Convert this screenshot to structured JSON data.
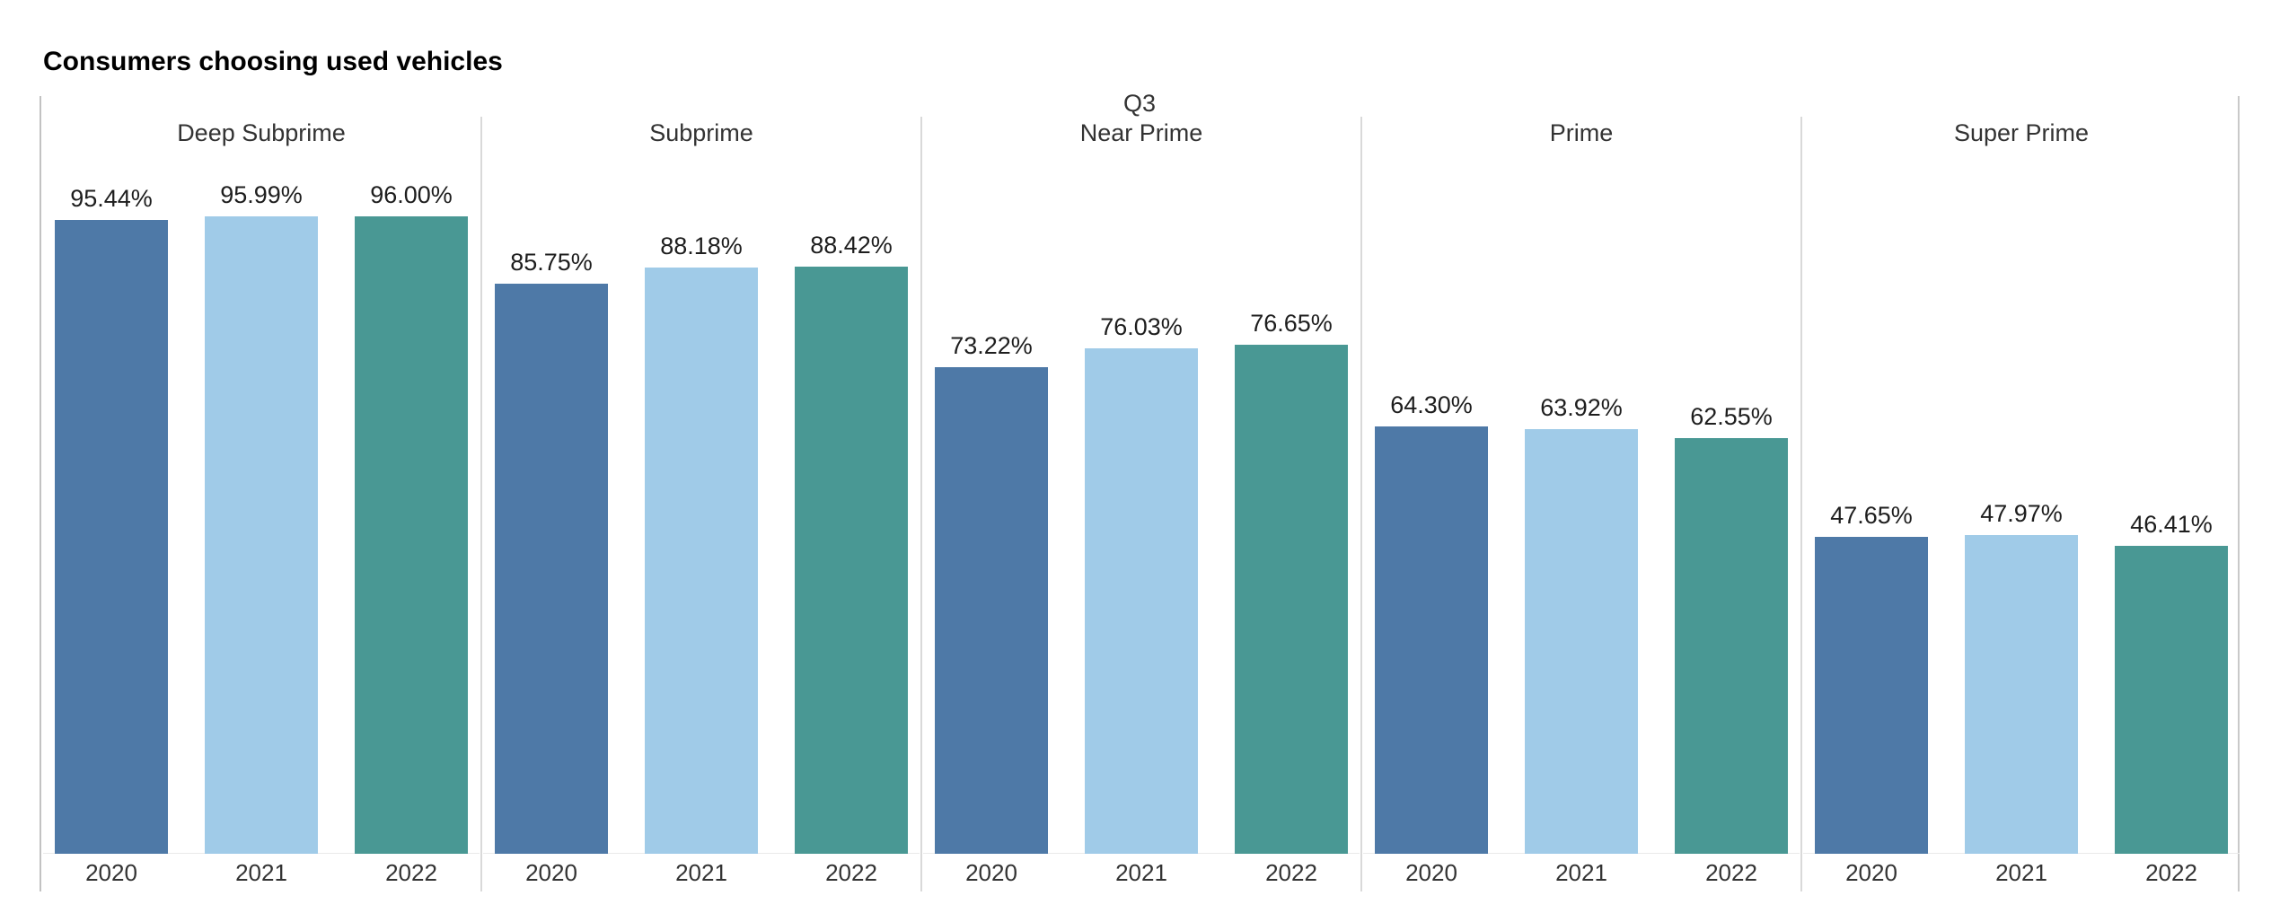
{
  "chart_data": {
    "type": "bar",
    "title": "Consumers choosing used vehicles",
    "quarter_label": "Q3",
    "categories": [
      "Deep Subprime",
      "Subprime",
      "Near Prime",
      "Prime",
      "Super Prime"
    ],
    "x_tick_labels": [
      "2020",
      "2021",
      "2022"
    ],
    "series": [
      {
        "name": "2020",
        "color": "#4e79a7",
        "values": [
          95.44,
          85.75,
          73.22,
          64.3,
          47.65
        ]
      },
      {
        "name": "2021",
        "color": "#a0cbe8",
        "values": [
          95.99,
          88.18,
          76.03,
          63.92,
          47.97
        ]
      },
      {
        "name": "2022",
        "color": "#499894",
        "values": [
          96.0,
          88.42,
          76.65,
          62.55,
          46.41
        ]
      }
    ],
    "value_suffix": "%",
    "value_decimals": 2,
    "ylim": [
      0,
      105
    ],
    "grid": false,
    "legend": "none",
    "data_labels": true
  }
}
